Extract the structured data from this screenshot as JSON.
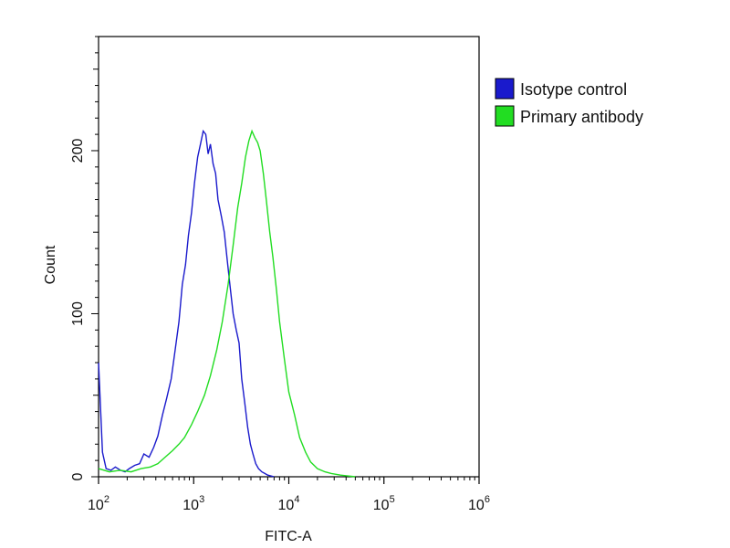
{
  "chart_data": {
    "type": "line",
    "title": "",
    "xlabel": "FITC-A",
    "ylabel": "Count",
    "x_scale": "log",
    "xlim": [
      100,
      1000000
    ],
    "ylim": [
      0,
      270
    ],
    "x_tick_values": [
      100,
      1000,
      10000,
      100000,
      1000000
    ],
    "x_tick_labels": [
      {
        "base": "10",
        "exp": "2"
      },
      {
        "base": "10",
        "exp": "3"
      },
      {
        "base": "10",
        "exp": "4"
      },
      {
        "base": "10",
        "exp": "5"
      },
      {
        "base": "10",
        "exp": "6"
      }
    ],
    "y_ticks": [
      0,
      100,
      200
    ],
    "y_tick_labels": [
      "0",
      "100",
      "200"
    ],
    "grid": false,
    "legend_position": "right",
    "series": [
      {
        "name": "Isotype control",
        "color": "#1a1acc",
        "x": [
          100,
          110,
          120,
          135,
          150,
          170,
          190,
          210,
          240,
          270,
          300,
          340,
          380,
          420,
          470,
          520,
          580,
          640,
          700,
          760,
          820,
          880,
          950,
          1020,
          1100,
          1180,
          1260,
          1340,
          1420,
          1500,
          1600,
          1700,
          1800,
          1950,
          2100,
          2250,
          2400,
          2600,
          2800,
          3000,
          3200,
          3450,
          3700,
          3950,
          4200,
          4500,
          4800,
          5200,
          5600,
          6000,
          7000
        ],
        "y": [
          70,
          15,
          5,
          4,
          6,
          4,
          3,
          5,
          7,
          8,
          14,
          12,
          18,
          25,
          38,
          48,
          60,
          78,
          95,
          118,
          130,
          148,
          162,
          180,
          196,
          204,
          212,
          210,
          198,
          204,
          192,
          186,
          170,
          160,
          150,
          133,
          118,
          100,
          90,
          82,
          60,
          45,
          30,
          20,
          14,
          8,
          5,
          3,
          2,
          1,
          0
        ]
      },
      {
        "name": "Primary antibody",
        "color": "#22dd22",
        "x": [
          100,
          130,
          170,
          220,
          280,
          350,
          420,
          500,
          600,
          700,
          800,
          950,
          1100,
          1300,
          1500,
          1750,
          2000,
          2300,
          2600,
          2900,
          3200,
          3500,
          3800,
          4100,
          4400,
          4700,
          5000,
          5400,
          5800,
          6300,
          6800,
          7400,
          8000,
          9000,
          10000,
          11500,
          13000,
          15000,
          17000,
          20000,
          24000,
          28000,
          35000,
          50000
        ],
        "y": [
          5,
          3,
          4,
          3,
          5,
          6,
          8,
          12,
          16,
          20,
          24,
          32,
          40,
          50,
          62,
          78,
          95,
          118,
          142,
          165,
          180,
          196,
          206,
          212,
          208,
          205,
          200,
          186,
          170,
          150,
          135,
          115,
          95,
          72,
          52,
          38,
          24,
          15,
          9,
          5,
          3,
          2,
          1,
          0
        ]
      }
    ]
  }
}
